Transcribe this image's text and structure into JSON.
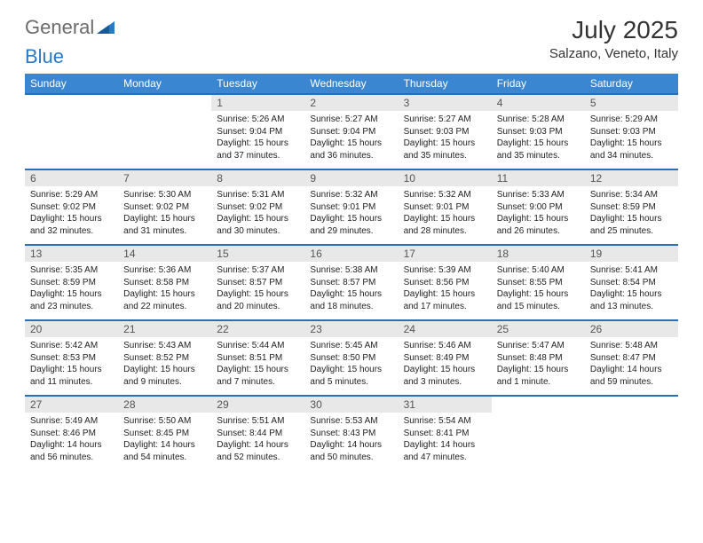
{
  "logo": {
    "text1": "General",
    "text2": "Blue"
  },
  "title": "July 2025",
  "location": "Salzano, Veneto, Italy",
  "dayNames": [
    "Sunday",
    "Monday",
    "Tuesday",
    "Wednesday",
    "Thursday",
    "Friday",
    "Saturday"
  ],
  "colors": {
    "headerBg": "#3a86d0",
    "headerText": "#ffffff",
    "dayNumBg": "#e8e8e8",
    "borderTop": "#2a6fb5",
    "logoGray": "#6b6b6b",
    "logoBlue": "#2a79c4"
  },
  "weeks": [
    [
      {
        "n": "",
        "lines": []
      },
      {
        "n": "",
        "lines": []
      },
      {
        "n": "1",
        "lines": [
          "Sunrise: 5:26 AM",
          "Sunset: 9:04 PM",
          "Daylight: 15 hours",
          "and 37 minutes."
        ]
      },
      {
        "n": "2",
        "lines": [
          "Sunrise: 5:27 AM",
          "Sunset: 9:04 PM",
          "Daylight: 15 hours",
          "and 36 minutes."
        ]
      },
      {
        "n": "3",
        "lines": [
          "Sunrise: 5:27 AM",
          "Sunset: 9:03 PM",
          "Daylight: 15 hours",
          "and 35 minutes."
        ]
      },
      {
        "n": "4",
        "lines": [
          "Sunrise: 5:28 AM",
          "Sunset: 9:03 PM",
          "Daylight: 15 hours",
          "and 35 minutes."
        ]
      },
      {
        "n": "5",
        "lines": [
          "Sunrise: 5:29 AM",
          "Sunset: 9:03 PM",
          "Daylight: 15 hours",
          "and 34 minutes."
        ]
      }
    ],
    [
      {
        "n": "6",
        "lines": [
          "Sunrise: 5:29 AM",
          "Sunset: 9:02 PM",
          "Daylight: 15 hours",
          "and 32 minutes."
        ]
      },
      {
        "n": "7",
        "lines": [
          "Sunrise: 5:30 AM",
          "Sunset: 9:02 PM",
          "Daylight: 15 hours",
          "and 31 minutes."
        ]
      },
      {
        "n": "8",
        "lines": [
          "Sunrise: 5:31 AM",
          "Sunset: 9:02 PM",
          "Daylight: 15 hours",
          "and 30 minutes."
        ]
      },
      {
        "n": "9",
        "lines": [
          "Sunrise: 5:32 AM",
          "Sunset: 9:01 PM",
          "Daylight: 15 hours",
          "and 29 minutes."
        ]
      },
      {
        "n": "10",
        "lines": [
          "Sunrise: 5:32 AM",
          "Sunset: 9:01 PM",
          "Daylight: 15 hours",
          "and 28 minutes."
        ]
      },
      {
        "n": "11",
        "lines": [
          "Sunrise: 5:33 AM",
          "Sunset: 9:00 PM",
          "Daylight: 15 hours",
          "and 26 minutes."
        ]
      },
      {
        "n": "12",
        "lines": [
          "Sunrise: 5:34 AM",
          "Sunset: 8:59 PM",
          "Daylight: 15 hours",
          "and 25 minutes."
        ]
      }
    ],
    [
      {
        "n": "13",
        "lines": [
          "Sunrise: 5:35 AM",
          "Sunset: 8:59 PM",
          "Daylight: 15 hours",
          "and 23 minutes."
        ]
      },
      {
        "n": "14",
        "lines": [
          "Sunrise: 5:36 AM",
          "Sunset: 8:58 PM",
          "Daylight: 15 hours",
          "and 22 minutes."
        ]
      },
      {
        "n": "15",
        "lines": [
          "Sunrise: 5:37 AM",
          "Sunset: 8:57 PM",
          "Daylight: 15 hours",
          "and 20 minutes."
        ]
      },
      {
        "n": "16",
        "lines": [
          "Sunrise: 5:38 AM",
          "Sunset: 8:57 PM",
          "Daylight: 15 hours",
          "and 18 minutes."
        ]
      },
      {
        "n": "17",
        "lines": [
          "Sunrise: 5:39 AM",
          "Sunset: 8:56 PM",
          "Daylight: 15 hours",
          "and 17 minutes."
        ]
      },
      {
        "n": "18",
        "lines": [
          "Sunrise: 5:40 AM",
          "Sunset: 8:55 PM",
          "Daylight: 15 hours",
          "and 15 minutes."
        ]
      },
      {
        "n": "19",
        "lines": [
          "Sunrise: 5:41 AM",
          "Sunset: 8:54 PM",
          "Daylight: 15 hours",
          "and 13 minutes."
        ]
      }
    ],
    [
      {
        "n": "20",
        "lines": [
          "Sunrise: 5:42 AM",
          "Sunset: 8:53 PM",
          "Daylight: 15 hours",
          "and 11 minutes."
        ]
      },
      {
        "n": "21",
        "lines": [
          "Sunrise: 5:43 AM",
          "Sunset: 8:52 PM",
          "Daylight: 15 hours",
          "and 9 minutes."
        ]
      },
      {
        "n": "22",
        "lines": [
          "Sunrise: 5:44 AM",
          "Sunset: 8:51 PM",
          "Daylight: 15 hours",
          "and 7 minutes."
        ]
      },
      {
        "n": "23",
        "lines": [
          "Sunrise: 5:45 AM",
          "Sunset: 8:50 PM",
          "Daylight: 15 hours",
          "and 5 minutes."
        ]
      },
      {
        "n": "24",
        "lines": [
          "Sunrise: 5:46 AM",
          "Sunset: 8:49 PM",
          "Daylight: 15 hours",
          "and 3 minutes."
        ]
      },
      {
        "n": "25",
        "lines": [
          "Sunrise: 5:47 AM",
          "Sunset: 8:48 PM",
          "Daylight: 15 hours",
          "and 1 minute."
        ]
      },
      {
        "n": "26",
        "lines": [
          "Sunrise: 5:48 AM",
          "Sunset: 8:47 PM",
          "Daylight: 14 hours",
          "and 59 minutes."
        ]
      }
    ],
    [
      {
        "n": "27",
        "lines": [
          "Sunrise: 5:49 AM",
          "Sunset: 8:46 PM",
          "Daylight: 14 hours",
          "and 56 minutes."
        ]
      },
      {
        "n": "28",
        "lines": [
          "Sunrise: 5:50 AM",
          "Sunset: 8:45 PM",
          "Daylight: 14 hours",
          "and 54 minutes."
        ]
      },
      {
        "n": "29",
        "lines": [
          "Sunrise: 5:51 AM",
          "Sunset: 8:44 PM",
          "Daylight: 14 hours",
          "and 52 minutes."
        ]
      },
      {
        "n": "30",
        "lines": [
          "Sunrise: 5:53 AM",
          "Sunset: 8:43 PM",
          "Daylight: 14 hours",
          "and 50 minutes."
        ]
      },
      {
        "n": "31",
        "lines": [
          "Sunrise: 5:54 AM",
          "Sunset: 8:41 PM",
          "Daylight: 14 hours",
          "and 47 minutes."
        ]
      },
      {
        "n": "",
        "lines": []
      },
      {
        "n": "",
        "lines": []
      }
    ]
  ]
}
